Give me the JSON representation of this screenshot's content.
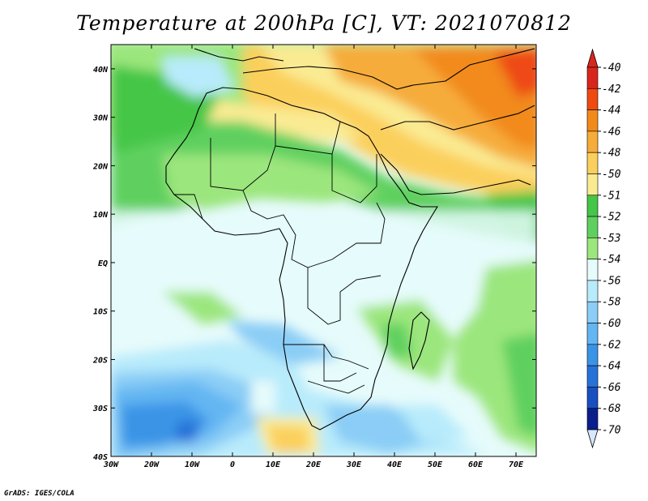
{
  "title": "Temperature at 200hPa [C], VT: 2021070812",
  "credit": "GrADS: IGES/COLA",
  "map": {
    "lon_labels": [
      "30W",
      "20W",
      "10W",
      "0",
      "10E",
      "20E",
      "30E",
      "40E",
      "50E",
      "60E",
      "70E"
    ],
    "lat_labels": [
      "40N",
      "30N",
      "20N",
      "10N",
      "EQ",
      "10S",
      "20S",
      "30S",
      "40S"
    ],
    "lon_range": [
      -30,
      75
    ],
    "lat_range": [
      -40,
      45
    ]
  },
  "colorbar": {
    "levels": [
      "-40",
      "-42",
      "-44",
      "-46",
      "-48",
      "-50",
      "-51",
      "-52",
      "-53",
      "-54",
      "-56",
      "-58",
      "-60",
      "-62",
      "-64",
      "-66",
      "-68",
      "-70"
    ],
    "colors": [
      "#d9261c",
      "#ee4a12",
      "#f28a1a",
      "#f6ac3a",
      "#fbcf5c",
      "#faeb93",
      "#45c646",
      "#5fd05f",
      "#9be67d",
      "#e6fbfb",
      "#b8ebfb",
      "#8bcdf6",
      "#63b6f2",
      "#3a94e6",
      "#2672d9",
      "#1a4fbf",
      "#0a1f8c"
    ],
    "top_color": "#d9261c",
    "bottom_color": "#d7e8fb"
  }
}
